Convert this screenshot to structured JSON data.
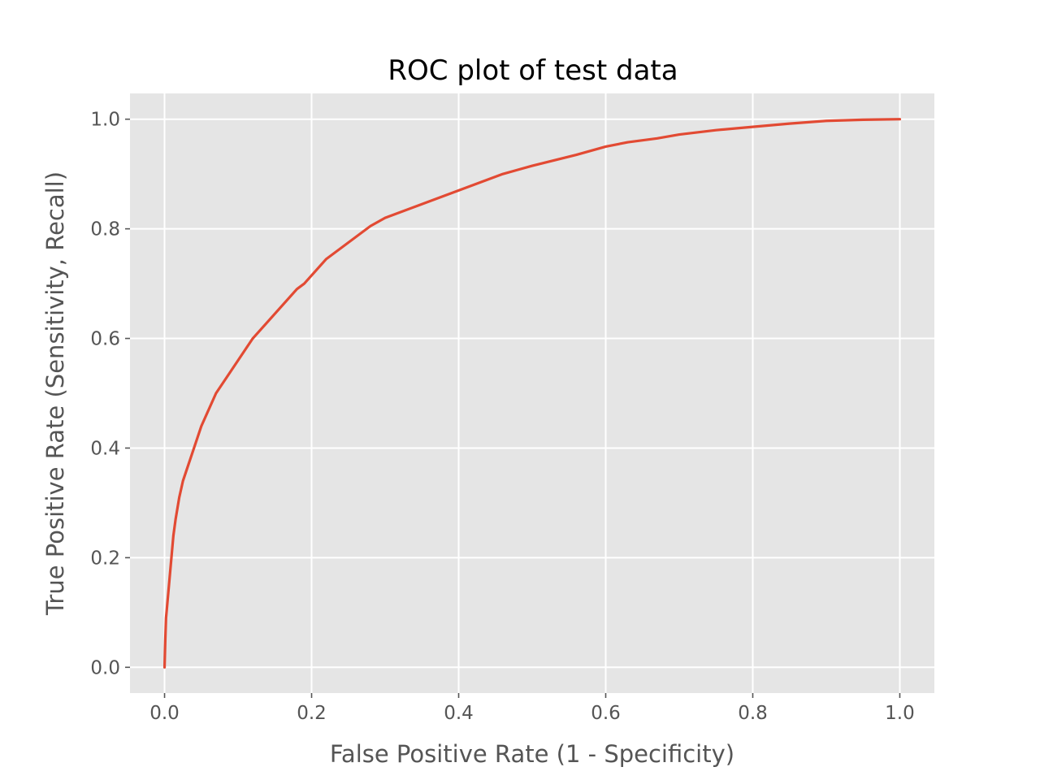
{
  "chart_data": {
    "type": "line",
    "title": "ROC plot of test data",
    "xlabel": "False Positive Rate (1 - Specificity)",
    "ylabel": "True Positive Rate (Sensitivity, Recall)",
    "xlim": [
      -0.047,
      1.047
    ],
    "ylim": [
      -0.047,
      1.047
    ],
    "xticks": [
      0.0,
      0.2,
      0.4,
      0.6,
      0.8,
      1.0
    ],
    "xtick_labels": [
      "0.0",
      "0.2",
      "0.4",
      "0.6",
      "0.8",
      "1.0"
    ],
    "yticks": [
      0.0,
      0.2,
      0.4,
      0.6,
      0.8,
      1.0
    ],
    "ytick_labels": [
      "0.0",
      "0.2",
      "0.4",
      "0.6",
      "0.8",
      "1.0"
    ],
    "grid": true,
    "background_color": "#e5e5e5",
    "series": [
      {
        "color": "#e24a33",
        "x": [
          0.0,
          0.001,
          0.002,
          0.004,
          0.006,
          0.008,
          0.01,
          0.012,
          0.015,
          0.02,
          0.025,
          0.03,
          0.035,
          0.04,
          0.05,
          0.06,
          0.07,
          0.08,
          0.09,
          0.1,
          0.11,
          0.12,
          0.13,
          0.14,
          0.15,
          0.16,
          0.17,
          0.18,
          0.19,
          0.2,
          0.22,
          0.24,
          0.26,
          0.28,
          0.3,
          0.32,
          0.35,
          0.38,
          0.4,
          0.43,
          0.46,
          0.5,
          0.53,
          0.56,
          0.6,
          0.63,
          0.67,
          0.7,
          0.75,
          0.8,
          0.85,
          0.9,
          0.95,
          1.0
        ],
        "y": [
          0.0,
          0.05,
          0.09,
          0.12,
          0.15,
          0.18,
          0.21,
          0.24,
          0.27,
          0.31,
          0.34,
          0.36,
          0.38,
          0.4,
          0.44,
          0.47,
          0.5,
          0.52,
          0.54,
          0.56,
          0.58,
          0.6,
          0.615,
          0.63,
          0.645,
          0.66,
          0.675,
          0.69,
          0.7,
          0.715,
          0.745,
          0.765,
          0.785,
          0.805,
          0.82,
          0.83,
          0.845,
          0.86,
          0.87,
          0.885,
          0.9,
          0.915,
          0.925,
          0.935,
          0.95,
          0.958,
          0.965,
          0.972,
          0.98,
          0.986,
          0.992,
          0.997,
          0.999,
          1.0
        ]
      }
    ]
  }
}
